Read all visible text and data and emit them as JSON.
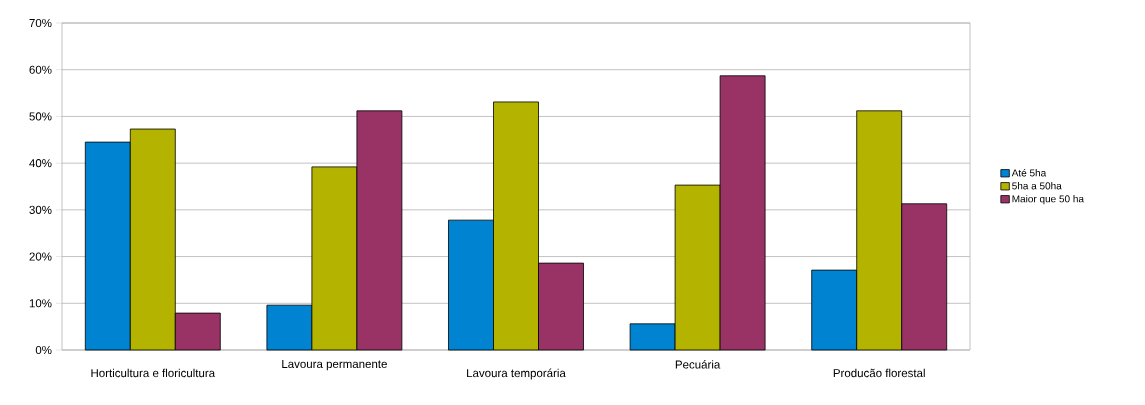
{
  "chart_data": {
    "type": "bar",
    "categories": [
      "Horticultura e floricultura",
      "Lavoura permanente",
      "Lavoura temporária",
      "Pecuária",
      "Producão florestal"
    ],
    "series": [
      {
        "name": "Até 5ha",
        "color": "#0084d1",
        "values": [
          44.5,
          9.6,
          27.8,
          5.6,
          17.1
        ]
      },
      {
        "name": "5ha a 50ha",
        "color": "#b3b300",
        "values": [
          47.3,
          39.2,
          53.1,
          35.3,
          51.2
        ]
      },
      {
        "name": "Maior que 50 ha",
        "color": "#993366",
        "values": [
          7.9,
          51.2,
          18.6,
          58.7,
          31.3
        ]
      }
    ],
    "ylim": [
      0,
      70
    ],
    "yticks": [
      {
        "value": 0,
        "label": "0%"
      },
      {
        "value": 10,
        "label": "10%"
      },
      {
        "value": 20,
        "label": "20%"
      },
      {
        "value": 30,
        "label": "30%"
      },
      {
        "value": 40,
        "label": "40%"
      },
      {
        "value": 50,
        "label": "50%"
      },
      {
        "value": 60,
        "label": "60%"
      },
      {
        "value": 70,
        "label": "70%"
      }
    ],
    "grid": "y",
    "legend": "right"
  }
}
